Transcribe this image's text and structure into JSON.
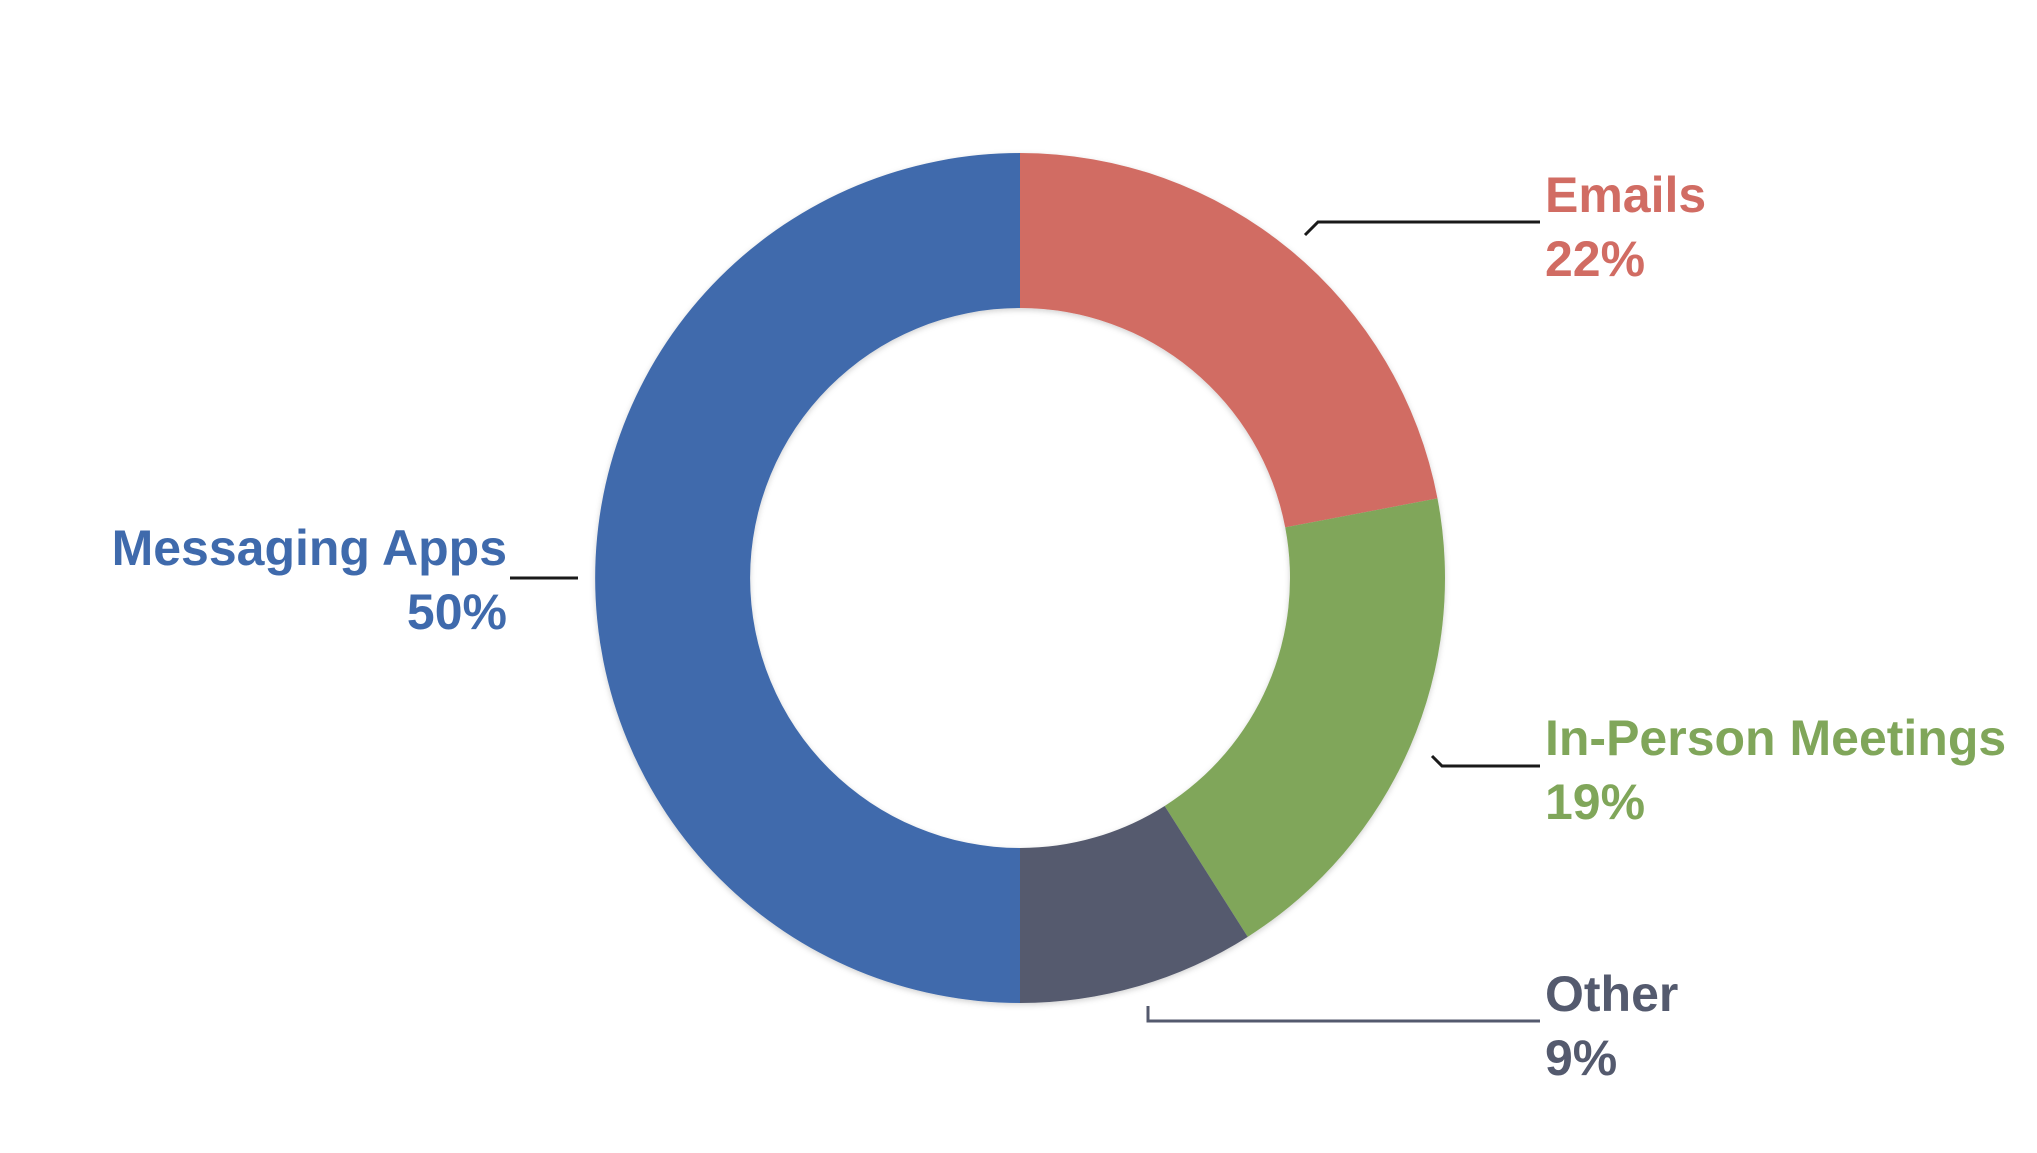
{
  "chart_data": {
    "type": "pie",
    "donut": true,
    "slices": [
      {
        "label": "Emails",
        "value": 22,
        "value_label": "22%",
        "color": "#D16C63"
      },
      {
        "label": "In-Person Meetings",
        "value": 19,
        "value_label": "19%",
        "color": "#80A65A"
      },
      {
        "label": "Other",
        "value": 9,
        "value_label": "9%",
        "color": "#545A6E"
      },
      {
        "label": "Messaging Apps",
        "value": 50,
        "value_label": "50%",
        "color": "#3F6AAC"
      }
    ],
    "title": "",
    "legend": "none",
    "labels": "outside with leader lines"
  }
}
